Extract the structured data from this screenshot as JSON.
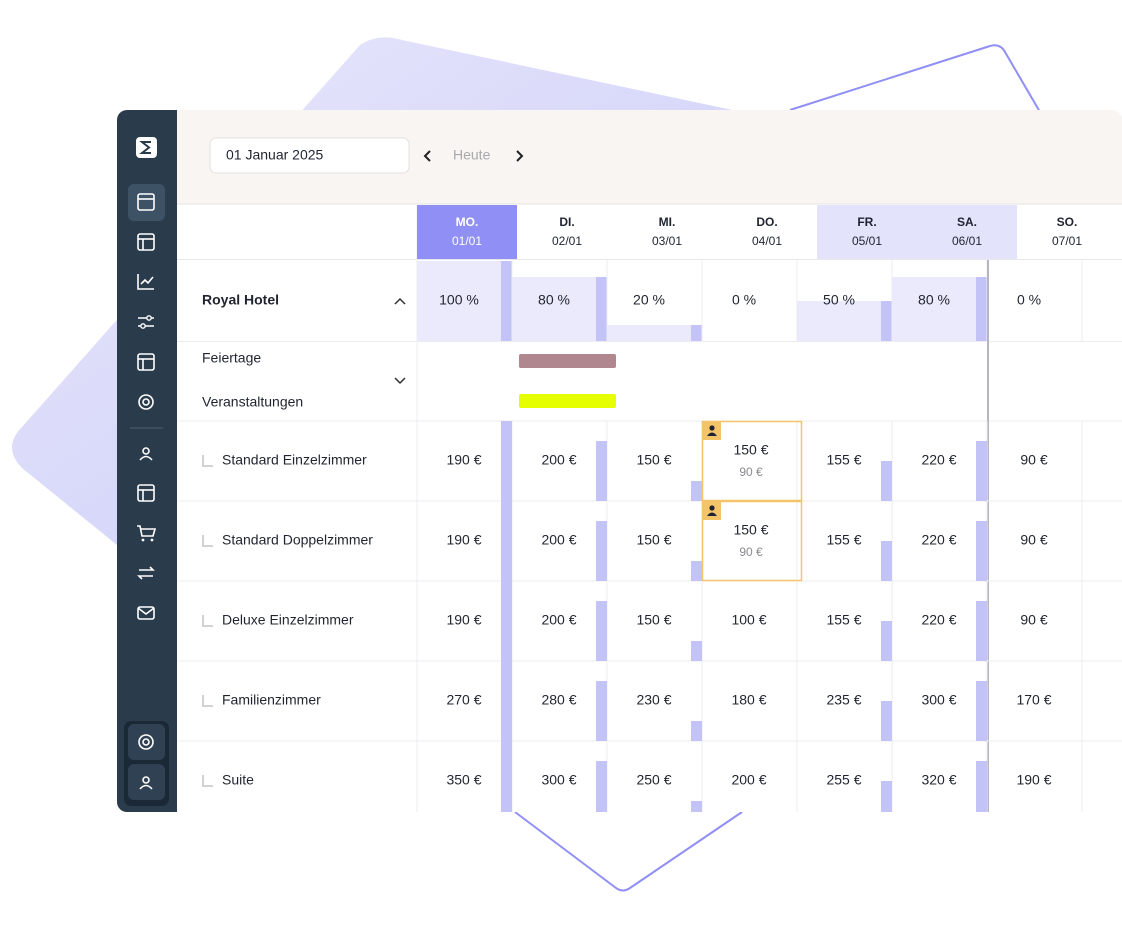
{
  "toolbar": {
    "date": "01 Januar 2025",
    "today": "Heute"
  },
  "days": [
    {
      "weekday": "MO.",
      "date": "01/01"
    },
    {
      "weekday": "DI.",
      "date": "02/01"
    },
    {
      "weekday": "MI.",
      "date": "03/01"
    },
    {
      "weekday": "DO.",
      "date": "04/01"
    },
    {
      "weekday": "FR.",
      "date": "05/01"
    },
    {
      "weekday": "SA.",
      "date": "06/01"
    },
    {
      "weekday": "SO.",
      "date": "07/01"
    }
  ],
  "hotel": {
    "name": "Royal Hotel",
    "occupancy": [
      "100 %",
      "80 %",
      "20 %",
      "0 %",
      "50 %",
      "80 %",
      "0 %"
    ]
  },
  "calendar_labels": {
    "holidays": "Feiertage",
    "events": "Veranstaltungen"
  },
  "rooms": [
    {
      "name": "Standard Einzelzimmer",
      "prices": [
        "190 €",
        "200 €",
        "150 €",
        {
          "price": "150 €",
          "base": "90 €"
        },
        "155 €",
        "220 €",
        "90 €"
      ]
    },
    {
      "name": "Standard Doppelzimmer",
      "prices": [
        "190 €",
        "200 €",
        "150 €",
        {
          "price": "150 €",
          "base": "90 €"
        },
        "155 €",
        "220 €",
        "90 €"
      ]
    },
    {
      "name": "Deluxe Einzelzimmer",
      "prices": [
        "190 €",
        "200 €",
        "150 €",
        "100 €",
        "155 €",
        "220 €",
        "90 €"
      ]
    },
    {
      "name": "Familienzimmer",
      "prices": [
        "270 €",
        "280 €",
        "230 €",
        "180 €",
        "235 €",
        "300 €",
        "170 €"
      ]
    },
    {
      "name": "Suite",
      "prices": [
        "350 €",
        "300 €",
        "250 €",
        "200 €",
        "255 €",
        "320 €",
        "190 €"
      ]
    }
  ]
}
